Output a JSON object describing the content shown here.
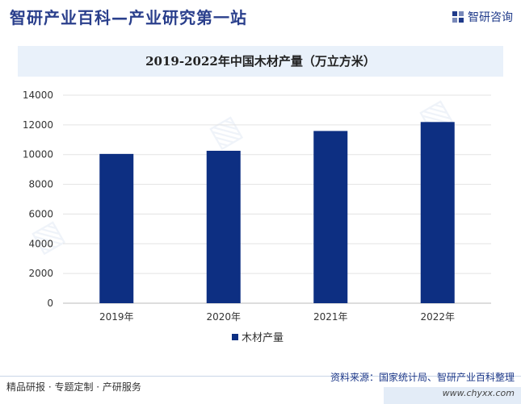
{
  "header": {
    "site_title": "智研产业百科—产业研究第一站",
    "brand": "智研咨询"
  },
  "footer": {
    "left": "精品研报 · 专题定制 · 产研服务",
    "source": "资料来源：国家统计局、智研产业百科整理",
    "url": "www.chyxx.com"
  },
  "colors": {
    "bar": "#0d2f82",
    "title_bg": "#e9f1fa"
  },
  "chart_data": {
    "type": "bar",
    "title": "2019-2022年中国木材产量（万立方米）",
    "categories": [
      "2019年",
      "2020年",
      "2021年",
      "2022年"
    ],
    "series": [
      {
        "name": "木材产量",
        "values": [
          10046,
          10257,
          11590,
          12193
        ]
      }
    ],
    "ylim": [
      0,
      14000
    ],
    "yticks": [
      0,
      2000,
      4000,
      6000,
      8000,
      10000,
      12000,
      14000
    ],
    "grid": true,
    "legend": "bottom"
  }
}
